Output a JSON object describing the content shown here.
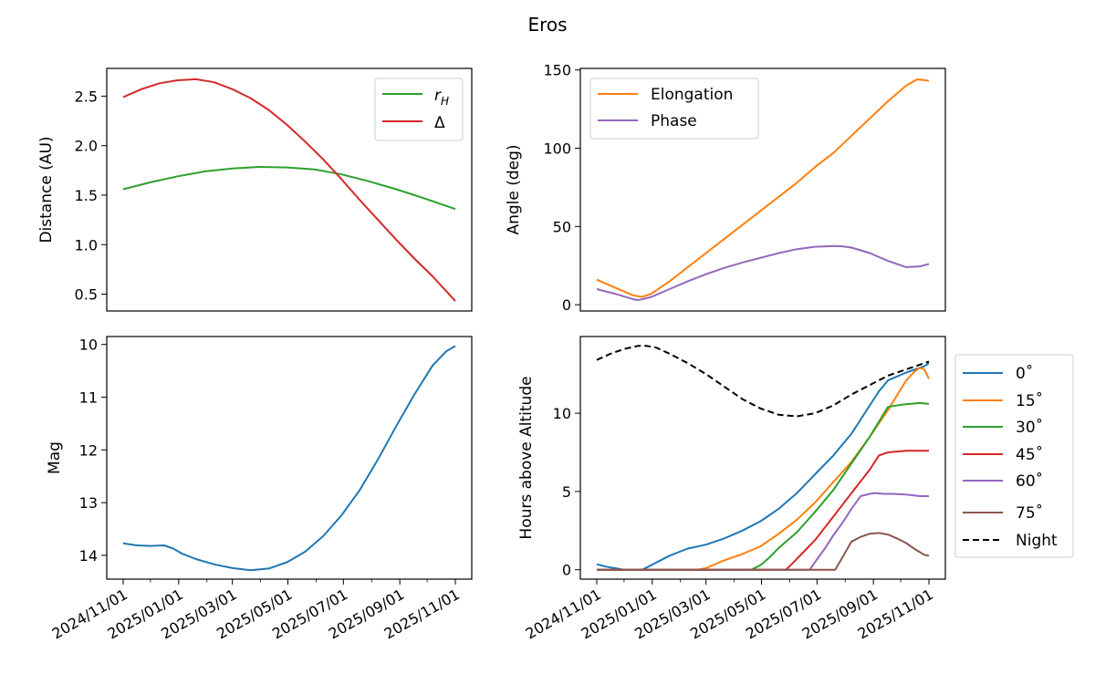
{
  "figure_title": "Eros",
  "date_ticks": [
    "2024/11/01",
    "2025/01/01",
    "2025/03/01",
    "2025/05/01",
    "2025/07/01",
    "2025/09/01",
    "2025/11/01"
  ],
  "chart_data": [
    {
      "id": "distance",
      "type": "line",
      "xlabel": "",
      "ylabel": "Distance (AU)",
      "xlim": [
        0,
        365
      ],
      "ylim": [
        0.33,
        2.78
      ],
      "yticks": [
        0.5,
        1.0,
        1.5,
        2.0,
        2.5
      ],
      "ytick_labels": [
        "0.5",
        "1.0",
        "1.5",
        "2.0",
        "2.5"
      ],
      "legend_loc": "upper right",
      "series": [
        {
          "name": "r_H",
          "label_main": "r",
          "label_sub": "H",
          "color": "#2ca02c",
          "x": [
            0,
            30,
            60,
            90,
            120,
            150,
            180,
            210,
            240,
            270,
            300,
            330,
            365
          ],
          "y": [
            1.56,
            1.63,
            1.69,
            1.74,
            1.77,
            1.785,
            1.78,
            1.76,
            1.71,
            1.64,
            1.56,
            1.47,
            1.36
          ]
        },
        {
          "name": "Δ",
          "label_main": "Δ",
          "label_sub": "",
          "color": "#d62728",
          "x": [
            0,
            20,
            40,
            60,
            80,
            100,
            120,
            140,
            160,
            180,
            200,
            220,
            240,
            260,
            280,
            300,
            320,
            340,
            365
          ],
          "y": [
            2.49,
            2.57,
            2.63,
            2.66,
            2.67,
            2.64,
            2.57,
            2.48,
            2.36,
            2.21,
            2.04,
            1.86,
            1.66,
            1.45,
            1.25,
            1.05,
            0.86,
            0.68,
            0.43
          ]
        }
      ]
    },
    {
      "id": "angles",
      "type": "line",
      "xlabel": "",
      "ylabel": "Angle (deg)",
      "xlim": [
        0,
        365
      ],
      "ylim": [
        -4,
        151
      ],
      "yticks": [
        0,
        50,
        100,
        150
      ],
      "ytick_labels": [
        "0",
        "50",
        "100",
        "150"
      ],
      "legend_loc": "upper left",
      "series": [
        {
          "name": "Elongation",
          "color": "#ff7f0e",
          "x": [
            0,
            20,
            40,
            50,
            60,
            80,
            100,
            120,
            140,
            160,
            180,
            200,
            220,
            240,
            260,
            280,
            300,
            320,
            340,
            352,
            360,
            365
          ],
          "y": [
            16,
            11,
            6,
            5,
            7,
            15,
            24,
            33,
            42,
            51,
            60,
            69,
            78,
            88,
            97,
            108,
            119,
            130,
            140,
            144,
            143.5,
            143
          ]
        },
        {
          "name": "Phase",
          "color": "#9467bd",
          "x": [
            0,
            20,
            40,
            45,
            50,
            60,
            80,
            100,
            120,
            140,
            160,
            180,
            200,
            220,
            240,
            260,
            270,
            280,
            300,
            320,
            340,
            355,
            365
          ],
          "y": [
            10,
            7,
            3.5,
            3,
            3.5,
            5,
            10,
            15,
            19.5,
            23.5,
            27,
            30,
            33,
            35.5,
            37,
            37.5,
            37.3,
            36.5,
            33,
            28,
            24,
            24.5,
            26
          ]
        }
      ]
    },
    {
      "id": "magnitude",
      "type": "line",
      "xlabel": "",
      "ylabel": "Mag",
      "xlim": [
        0,
        365
      ],
      "ylim": [
        14.45,
        9.85
      ],
      "yticks": [
        10,
        11,
        12,
        13,
        14
      ],
      "ytick_labels": [
        "10",
        "11",
        "12",
        "13",
        "14"
      ],
      "legend_loc": "",
      "series": [
        {
          "name": "Mag",
          "color": "#1f77b4",
          "x": [
            0,
            15,
            30,
            45,
            55,
            65,
            80,
            100,
            120,
            140,
            160,
            180,
            200,
            220,
            240,
            260,
            280,
            300,
            320,
            340,
            355,
            365
          ],
          "y": [
            13.77,
            13.81,
            13.82,
            13.81,
            13.87,
            13.97,
            14.07,
            14.17,
            14.24,
            14.28,
            14.25,
            14.13,
            13.93,
            13.63,
            13.24,
            12.76,
            12.18,
            11.55,
            10.95,
            10.4,
            10.13,
            10.03
          ]
        }
      ]
    },
    {
      "id": "altitude",
      "type": "line",
      "xlabel": "",
      "ylabel": "Hours above Altitude",
      "xlim": [
        0,
        365
      ],
      "ylim": [
        -0.6,
        14.9
      ],
      "yticks": [
        0,
        5,
        10
      ],
      "ytick_labels": [
        "0",
        "5",
        "10"
      ],
      "legend_loc": "outside right",
      "series": [
        {
          "name": "0˚",
          "color": "#1f77b4",
          "dashed": false,
          "x": [
            0,
            10,
            20,
            30,
            40,
            50,
            60,
            80,
            100,
            120,
            140,
            160,
            180,
            200,
            220,
            240,
            260,
            280,
            300,
            310,
            320,
            340,
            360,
            365
          ],
          "y": [
            0.35,
            0.2,
            0.1,
            0,
            0,
            0,
            0.3,
            0.9,
            1.35,
            1.6,
            2,
            2.5,
            3.1,
            3.9,
            4.9,
            6.1,
            7.3,
            8.7,
            10.5,
            11.4,
            12.1,
            12.6,
            13,
            13.2
          ]
        },
        {
          "name": "15˚",
          "color": "#ff7f0e",
          "dashed": false,
          "x": [
            0,
            110,
            120,
            140,
            160,
            180,
            200,
            220,
            240,
            260,
            280,
            300,
            320,
            340,
            350,
            355,
            360,
            365
          ],
          "y": [
            0,
            0,
            0.1,
            0.6,
            1,
            1.5,
            2.3,
            3.2,
            4.3,
            5.6,
            6.9,
            8.5,
            10.2,
            12.1,
            12.7,
            12.9,
            12.8,
            12.2
          ]
        },
        {
          "name": "30˚",
          "color": "#2ca02c",
          "dashed": false,
          "x": [
            0,
            170,
            180,
            190,
            200,
            220,
            240,
            260,
            280,
            300,
            320,
            335,
            345,
            355,
            365
          ],
          "y": [
            0,
            0,
            0.3,
            0.8,
            1.4,
            2.4,
            3.7,
            5.1,
            6.8,
            8.5,
            10.4,
            10.55,
            10.6,
            10.65,
            10.6
          ]
        },
        {
          "name": "45˚",
          "color": "#d62728",
          "dashed": false,
          "x": [
            0,
            208,
            215,
            225,
            240,
            260,
            280,
            300,
            310,
            320,
            330,
            340,
            350,
            365
          ],
          "y": [
            0,
            0,
            0.4,
            1,
            1.9,
            3.4,
            4.9,
            6.4,
            7.3,
            7.5,
            7.55,
            7.6,
            7.6,
            7.6
          ]
        },
        {
          "name": "60˚",
          "color": "#9467bd",
          "dashed": false,
          "x": [
            0,
            234,
            240,
            250,
            260,
            270,
            280,
            290,
            300,
            305,
            315,
            325,
            340,
            355,
            365
          ],
          "y": [
            0,
            0,
            0.5,
            1.3,
            2.2,
            3,
            3.9,
            4.7,
            4.85,
            4.9,
            4.85,
            4.85,
            4.8,
            4.7,
            4.7
          ]
        },
        {
          "name": "75˚",
          "color": "#8c564b",
          "dashed": false,
          "x": [
            0,
            262,
            265,
            270,
            280,
            290,
            300,
            310,
            320,
            330,
            340,
            350,
            360,
            365
          ],
          "y": [
            0,
            0,
            0.3,
            0.8,
            1.8,
            2.1,
            2.3,
            2.35,
            2.25,
            2,
            1.7,
            1.3,
            0.95,
            0.9
          ]
        },
        {
          "name": "Night",
          "color": "#000000",
          "dashed": true,
          "x": [
            0,
            15,
            30,
            45,
            55,
            65,
            80,
            100,
            120,
            140,
            160,
            180,
            200,
            220,
            240,
            260,
            280,
            300,
            320,
            340,
            365
          ],
          "y": [
            13.4,
            13.8,
            14.1,
            14.3,
            14.3,
            14.2,
            13.8,
            13.2,
            12.5,
            11.7,
            10.9,
            10.3,
            9.9,
            9.8,
            10,
            10.5,
            11.2,
            11.8,
            12.4,
            12.8,
            13.3
          ]
        }
      ]
    }
  ]
}
